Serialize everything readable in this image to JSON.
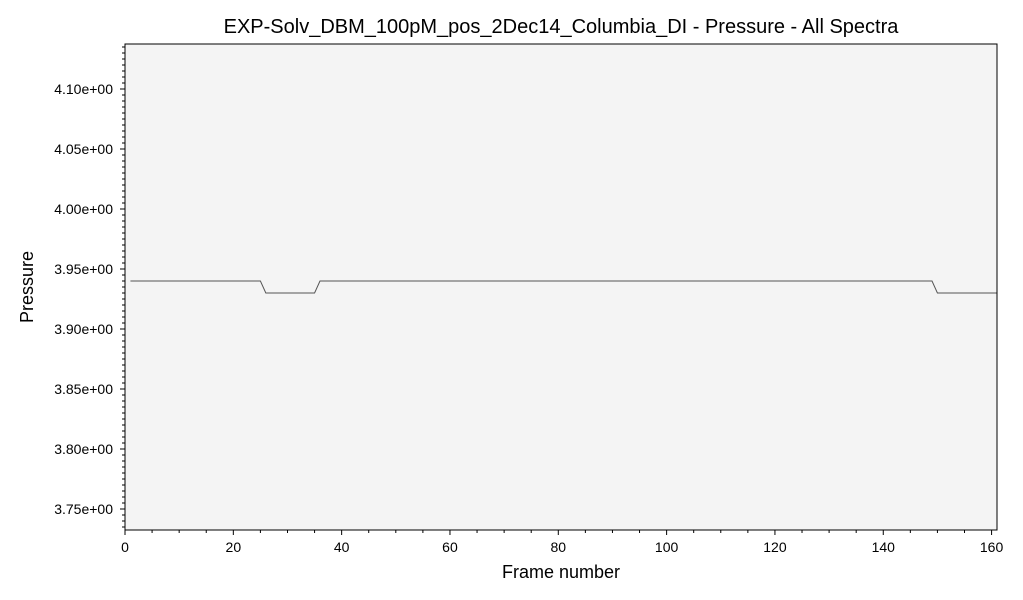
{
  "chart_data": {
    "type": "line",
    "title": "EXP-Solv_DBM_100pM_pos_2Dec14_Columbia_DI - Pressure - All Spectra",
    "xlabel": "Frame number",
    "ylabel": "Pressure",
    "xlim": [
      0,
      161
    ],
    "ylim": [
      3.7325,
      4.1375
    ],
    "x_ticks": [
      0,
      20,
      40,
      60,
      80,
      100,
      120,
      140,
      160
    ],
    "x_tick_labels": [
      "0",
      "20",
      "40",
      "60",
      "80",
      "100",
      "120",
      "140",
      "160"
    ],
    "y_ticks": [
      3.75,
      3.8,
      3.85,
      3.9,
      3.95,
      4.0,
      4.05,
      4.1
    ],
    "y_tick_labels": [
      "3.75e+00",
      "3.80e+00",
      "3.85e+00",
      "3.90e+00",
      "3.95e+00",
      "4.00e+00",
      "4.05e+00",
      "4.10e+00"
    ],
    "grid": false,
    "plot_background": "#f4f4f4",
    "line_color": "#555555",
    "series": [
      {
        "x": [
          1,
          25,
          26,
          35,
          36,
          149,
          150,
          161
        ],
        "values": [
          3.94,
          3.94,
          3.93,
          3.93,
          3.94,
          3.94,
          3.93,
          3.93
        ]
      }
    ]
  }
}
